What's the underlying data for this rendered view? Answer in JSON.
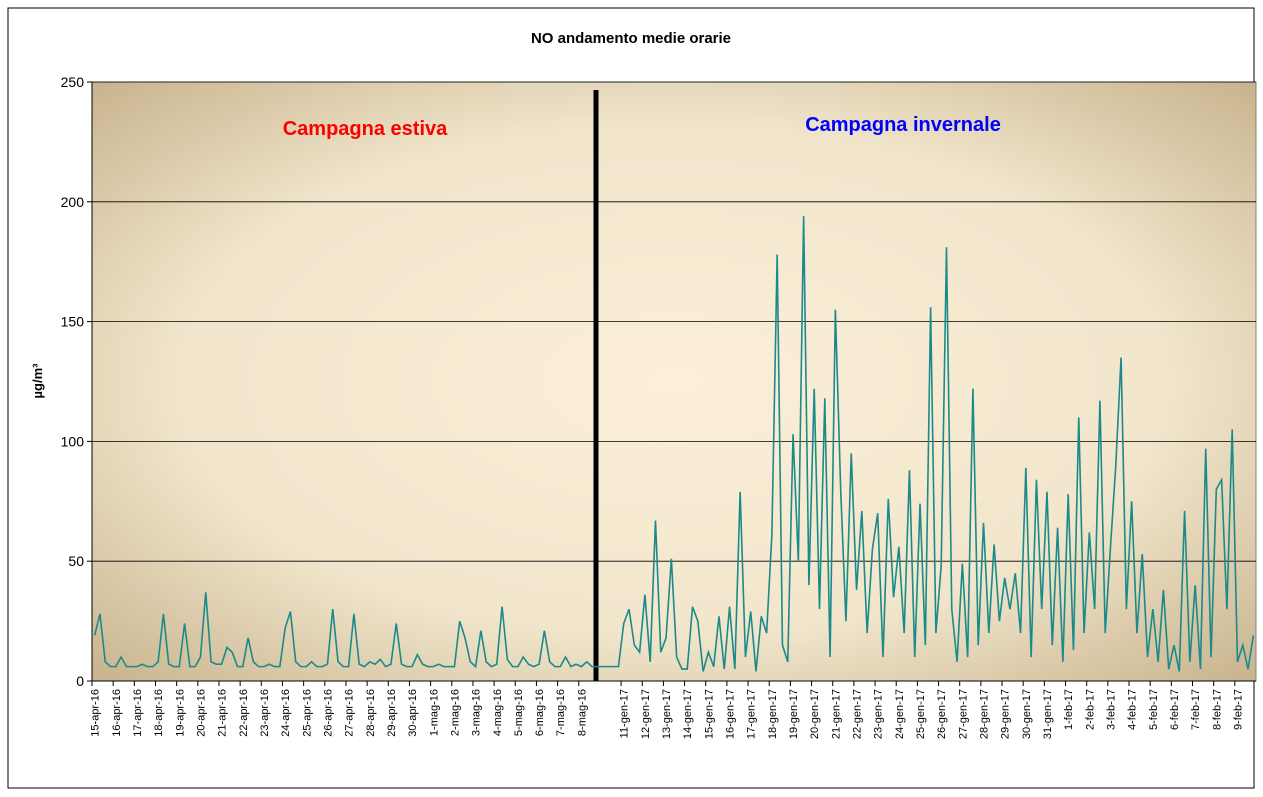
{
  "chart_data": {
    "type": "line",
    "title": "NO andamento medie orarie",
    "y_label": "µg/m³",
    "annotations": [
      {
        "text": "Campagna estiva",
        "color": "#ff0000"
      },
      {
        "text": "Campagna invernale",
        "color": "#0000ff"
      }
    ],
    "ylim": [
      0,
      250
    ],
    "yticks": [
      0,
      50,
      100,
      150,
      200,
      250
    ],
    "grid": true,
    "categories": [
      "15-apr-16",
      null,
      null,
      null,
      "16-apr-16",
      null,
      null,
      null,
      "17-apr-16",
      null,
      null,
      null,
      "18-apr-16",
      null,
      null,
      null,
      "19-apr-16",
      null,
      null,
      null,
      "20-apr-16",
      null,
      null,
      null,
      "21-apr-16",
      null,
      null,
      null,
      "22-apr-16",
      null,
      null,
      null,
      "23-apr-16",
      null,
      null,
      null,
      "24-apr-16",
      null,
      null,
      null,
      "25-apr-16",
      null,
      null,
      null,
      "26-apr-16",
      null,
      null,
      null,
      "27-apr-16",
      null,
      null,
      null,
      "28-apr-16",
      null,
      null,
      null,
      "29-apr-16",
      null,
      null,
      null,
      "30-apr-16",
      null,
      null,
      null,
      "1-mag-16",
      null,
      null,
      null,
      "2-mag-16",
      null,
      null,
      null,
      "3-mag-16",
      null,
      null,
      null,
      "4-mag-16",
      null,
      null,
      null,
      "5-mag-16",
      null,
      null,
      null,
      "6-mag-16",
      null,
      null,
      null,
      "7-mag-16",
      null,
      null,
      null,
      "8-mag-16",
      null,
      null,
      null,
      null,
      null,
      null,
      null,
      "11-gen-17",
      null,
      null,
      null,
      "12-gen-17",
      null,
      null,
      null,
      "13-gen-17",
      null,
      null,
      null,
      "14-gen-17",
      null,
      null,
      null,
      "15-gen-17",
      null,
      null,
      null,
      "16-gen-17",
      null,
      null,
      null,
      "17-gen-17",
      null,
      null,
      null,
      "18-gen-17",
      null,
      null,
      null,
      "19-gen-17",
      null,
      null,
      null,
      "20-gen-17",
      null,
      null,
      null,
      "21-gen-17",
      null,
      null,
      null,
      "22-gen-17",
      null,
      null,
      null,
      "23-gen-17",
      null,
      null,
      null,
      "24-gen-17",
      null,
      null,
      null,
      "25-gen-17",
      null,
      null,
      null,
      "26-gen-17",
      null,
      null,
      null,
      "27-gen-17",
      null,
      null,
      null,
      "28-gen-17",
      null,
      null,
      null,
      "29-gen-17",
      null,
      null,
      null,
      "30-gen-17",
      null,
      null,
      null,
      "31-gen-17",
      null,
      null,
      null,
      "1-feb-17",
      null,
      null,
      null,
      "2-feb-17",
      null,
      null,
      null,
      "3-feb-17",
      null,
      null,
      null,
      "4-feb-17",
      null,
      null,
      null,
      "5-feb-17",
      null,
      null,
      null,
      "6-feb-17",
      null,
      null,
      null,
      "7-feb-17",
      null,
      null,
      null,
      "8-feb-17",
      null,
      null,
      null,
      "9-feb-17",
      null,
      null,
      null
    ],
    "series": [
      {
        "color": "#1b8a8a",
        "values": [
          19,
          28,
          8,
          6,
          6,
          10,
          6,
          6,
          6,
          7,
          6,
          6,
          8,
          28,
          7,
          6,
          6,
          24,
          6,
          6,
          10,
          37,
          8,
          7,
          7,
          14,
          12,
          6,
          6,
          18,
          8,
          6,
          6,
          7,
          6,
          6,
          22,
          29,
          8,
          6,
          6,
          8,
          6,
          6,
          7,
          30,
          8,
          6,
          6,
          28,
          7,
          6,
          8,
          7,
          9,
          6,
          7,
          24,
          7,
          6,
          6,
          11,
          7,
          6,
          6,
          7,
          6,
          6,
          6,
          25,
          18,
          8,
          6,
          21,
          8,
          6,
          7,
          31,
          9,
          6,
          6,
          10,
          7,
          6,
          7,
          21,
          8,
          6,
          6,
          10,
          6,
          7,
          6,
          8,
          6,
          6,
          6,
          6,
          6,
          6,
          24,
          30,
          15,
          12,
          36,
          8,
          67,
          12,
          18,
          51,
          10,
          5,
          5,
          31,
          25,
          4,
          12,
          6,
          27,
          5,
          31,
          5,
          79,
          10,
          29,
          4,
          27,
          20,
          61,
          178,
          15,
          8,
          103,
          50,
          194,
          40,
          122,
          30,
          118,
          10,
          155,
          80,
          25,
          95,
          38,
          71,
          20,
          55,
          70,
          10,
          76,
          35,
          56,
          20,
          88,
          10,
          74,
          15,
          156,
          20,
          48,
          181,
          30,
          8,
          49,
          10,
          122,
          15,
          66,
          20,
          57,
          25,
          43,
          30,
          45,
          20,
          89,
          10,
          84,
          30,
          79,
          15,
          64,
          8,
          78,
          13,
          110,
          20,
          62,
          30,
          117,
          20,
          56,
          90,
          135,
          30,
          75,
          20,
          53,
          10,
          30,
          8,
          38,
          5,
          15,
          4,
          71,
          8,
          40,
          5,
          97,
          10,
          80,
          84,
          30,
          105,
          8,
          15,
          5,
          19
        ]
      }
    ]
  }
}
